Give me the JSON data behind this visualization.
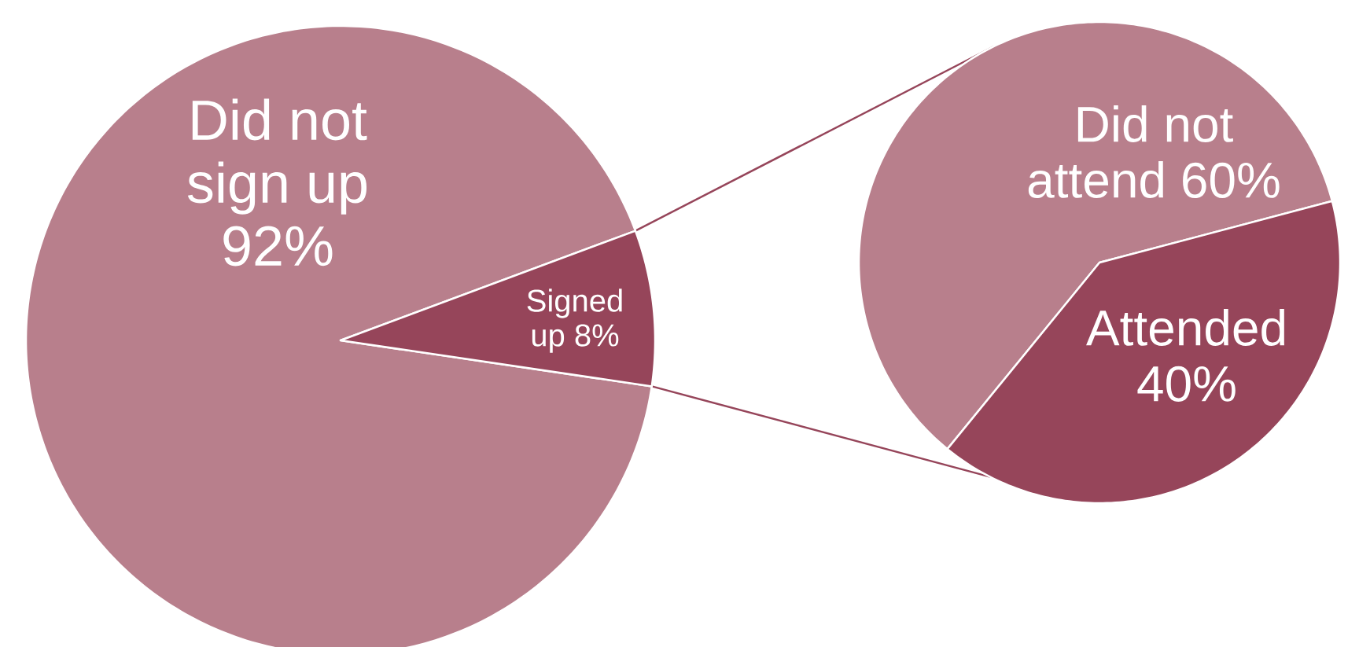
{
  "chart_data": [
    {
      "type": "pie",
      "categories": [
        "Did not sign up",
        "Signed up"
      ],
      "values": [
        92,
        8
      ],
      "colors": [
        "#b87f8c",
        "#96455a"
      ],
      "value_labels": [
        "92%",
        "8%"
      ]
    },
    {
      "type": "pie",
      "categories": [
        "Did not attend",
        "Attended"
      ],
      "values": [
        60,
        40
      ],
      "colors": [
        "#b87f8c",
        "#96455a"
      ],
      "value_labels": [
        "60%",
        "40%"
      ]
    }
  ]
}
